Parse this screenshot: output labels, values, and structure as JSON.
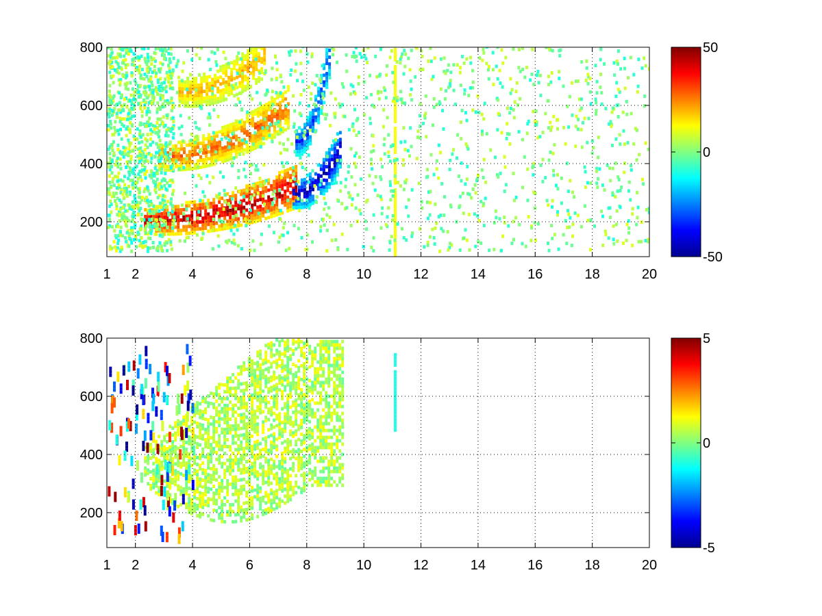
{
  "chart_data": [
    {
      "type": "heatmap",
      "panel": "top",
      "title": "",
      "xlabel": "",
      "ylabel": "",
      "xlim": [
        1,
        20
      ],
      "ylim": [
        80,
        800
      ],
      "x_ticks": [
        "1",
        "2",
        "4",
        "6",
        "8",
        "10",
        "12",
        "14",
        "16",
        "18",
        "20"
      ],
      "x_tick_values": [
        1,
        2,
        4,
        6,
        8,
        10,
        12,
        14,
        16,
        18,
        20
      ],
      "y_ticks": [
        "200",
        "400",
        "600",
        "800"
      ],
      "y_tick_values": [
        200,
        400,
        600,
        800
      ],
      "grid": true,
      "colormap": "jet",
      "colorbar": {
        "min": -50,
        "max": 50,
        "ticks": [
          "50",
          "0",
          "-50"
        ],
        "tick_values": [
          50,
          0,
          -50
        ]
      },
      "features": [
        {
          "kind": "curved-band",
          "x_range": [
            2.3,
            7.6
          ],
          "y_start": 210,
          "y_end": 330,
          "value": 40
        },
        {
          "kind": "curved-band",
          "x_range": [
            2.8,
            7.4
          ],
          "y_start": 430,
          "y_end": 610,
          "value": 25
        },
        {
          "kind": "curved-band",
          "x_range": [
            3.5,
            6.5
          ],
          "y_start": 650,
          "y_end": 780,
          "value": 18
        },
        {
          "kind": "curved-band",
          "x_range": [
            7.5,
            9.2
          ],
          "y_start": 300,
          "y_end": 470,
          "value": -40
        },
        {
          "kind": "curved-band",
          "x_range": [
            7.6,
            8.8
          ],
          "y_start": 480,
          "y_end": 800,
          "value": -30
        },
        {
          "kind": "vertical-line",
          "x": 11.1,
          "y_range": [
            80,
            800
          ],
          "value": 12
        },
        {
          "kind": "noise",
          "x_range": [
            1,
            20
          ],
          "y_range": [
            80,
            800
          ],
          "value_range": [
            -10,
            10
          ]
        }
      ]
    },
    {
      "type": "heatmap",
      "panel": "bottom",
      "title": "",
      "xlabel": "",
      "ylabel": "",
      "xlim": [
        1,
        20
      ],
      "ylim": [
        80,
        800
      ],
      "x_ticks": [
        "1",
        "2",
        "4",
        "6",
        "8",
        "10",
        "12",
        "14",
        "16",
        "18",
        "20"
      ],
      "x_tick_values": [
        1,
        2,
        4,
        6,
        8,
        10,
        12,
        14,
        16,
        18,
        20
      ],
      "y_ticks": [
        "200",
        "400",
        "600",
        "800"
      ],
      "y_tick_values": [
        200,
        400,
        600,
        800
      ],
      "grid": true,
      "colormap": "jet",
      "colorbar": {
        "min": -5,
        "max": 5,
        "ticks": [
          "5",
          "0",
          "-5"
        ],
        "tick_values": [
          5,
          0,
          -5
        ]
      },
      "features": [
        {
          "kind": "filled-region",
          "x_range": [
            2.3,
            9.3
          ],
          "y_low": 160,
          "y_high": 800,
          "value": 0.5
        },
        {
          "kind": "vertical-line",
          "x": 11.1,
          "y_range": [
            490,
            760
          ],
          "value": -1
        },
        {
          "kind": "scattered-spikes",
          "x_range": [
            1,
            4
          ],
          "y_range": [
            100,
            760
          ],
          "value_range": [
            -5,
            5
          ]
        }
      ]
    }
  ]
}
